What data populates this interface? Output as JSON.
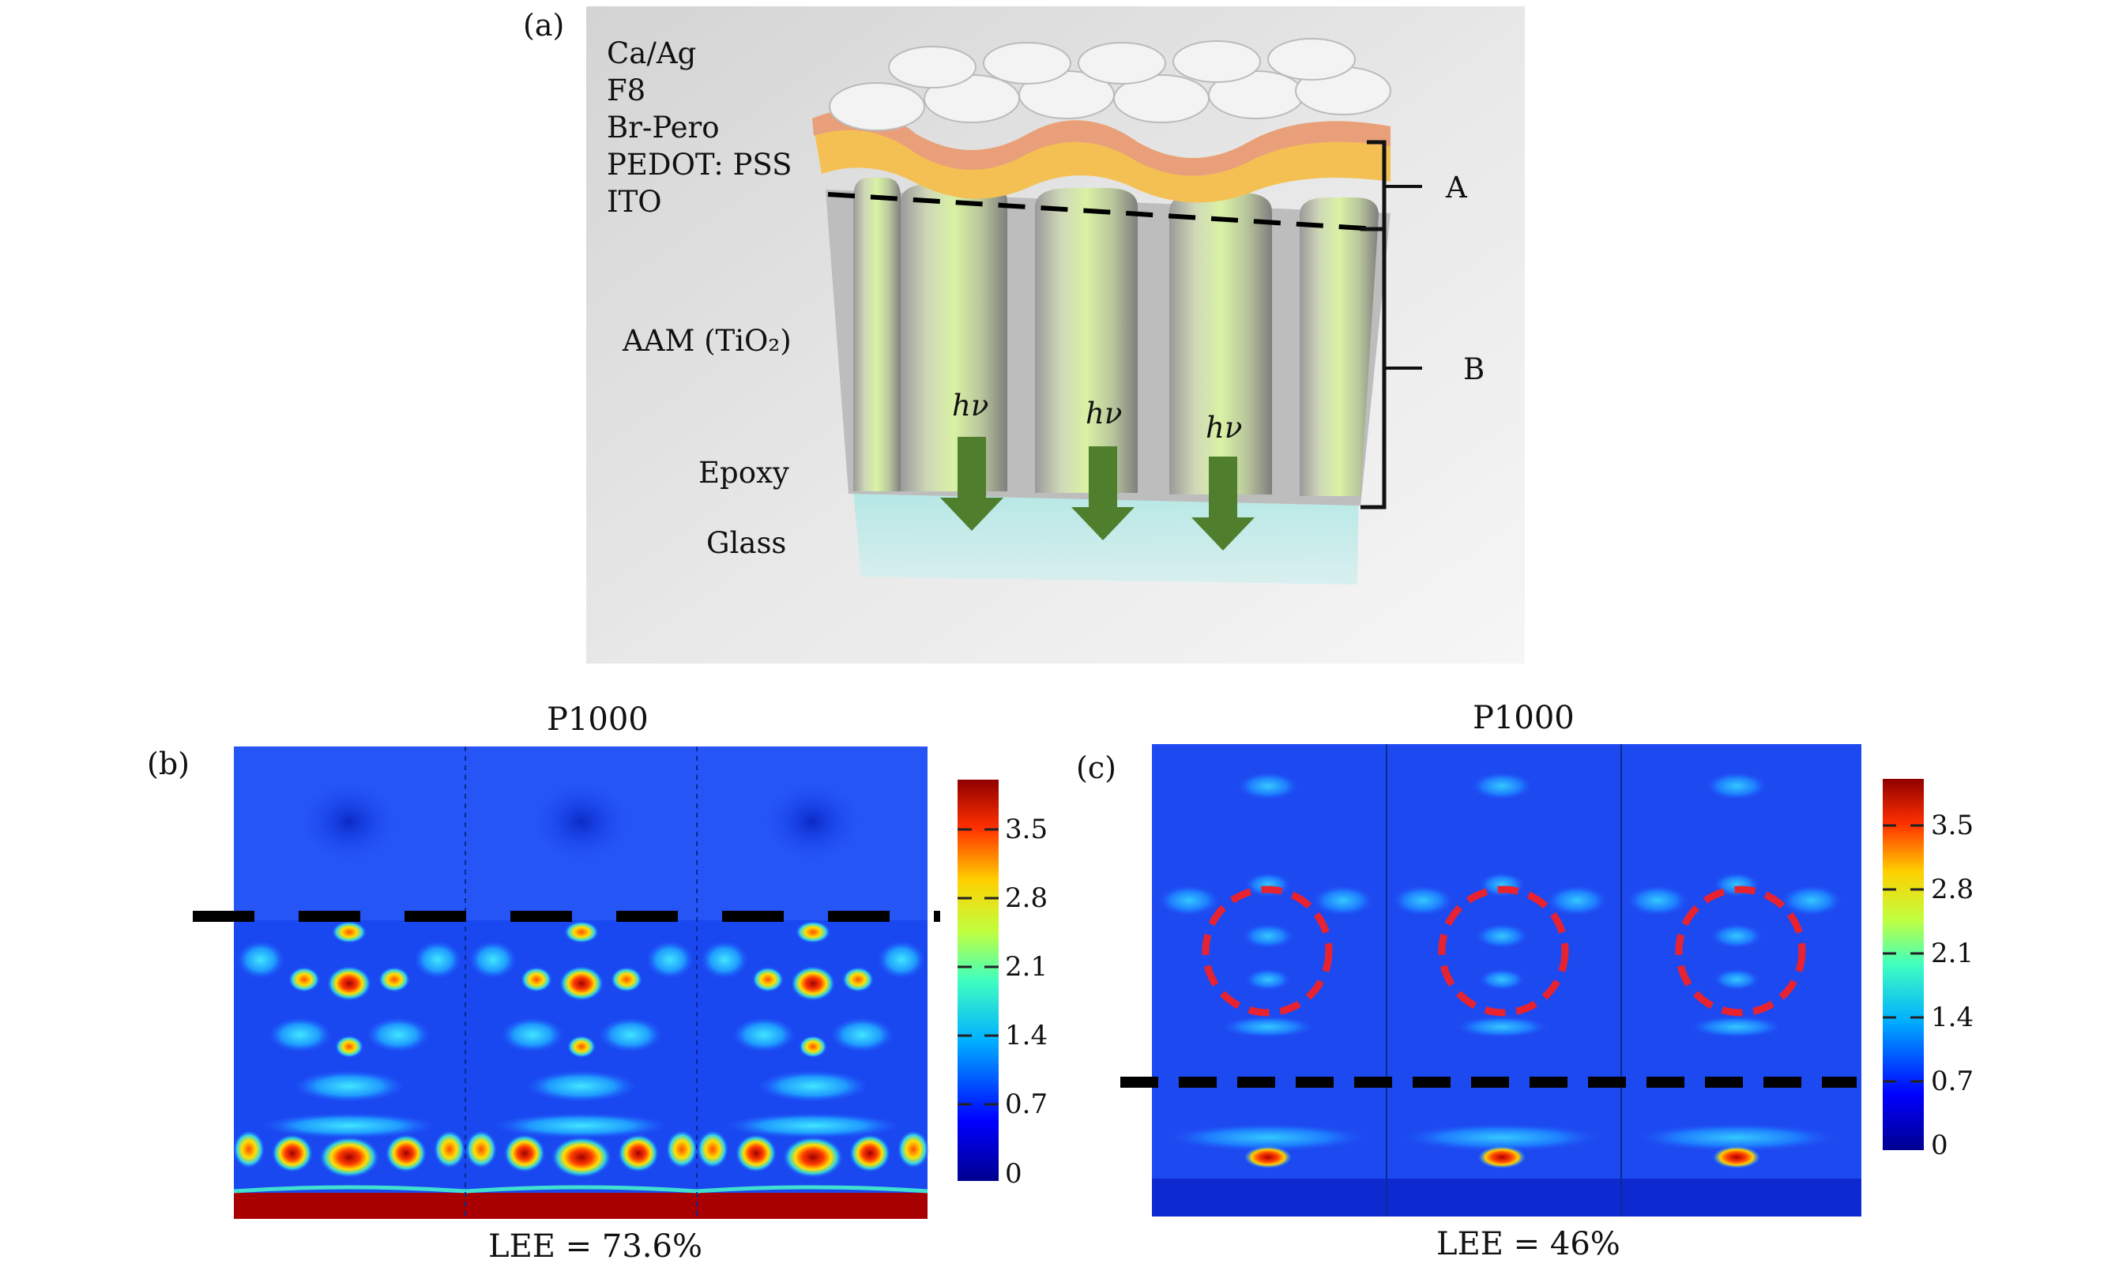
{
  "panel_a": {
    "label": "(a)",
    "layers": [
      "Ca/Ag",
      "F8",
      "Br-Pero",
      "PEDOT: PSS",
      "ITO"
    ],
    "aam_label": "AAM (TiO₂)",
    "epoxy_label": "Epoxy",
    "glass_label": "Glass",
    "photon_label": "hν",
    "bracket_a": "A",
    "bracket_b": "B"
  },
  "panel_b": {
    "label": "(b)",
    "title": "P1000",
    "lee": "LEE = 73.6%",
    "colorbar_ticks": [
      "3.5",
      "2.8",
      "2.1",
      "1.4",
      "0.7",
      "0"
    ]
  },
  "panel_c": {
    "label": "(c)",
    "title": "P1000",
    "lee": "LEE = 46%",
    "colorbar_ticks": [
      "3.5",
      "2.8",
      "2.1",
      "1.4",
      "0.7",
      "0"
    ]
  },
  "colors": {
    "field_low": "#0a2fd8",
    "field_high": "#b00000",
    "arrow": "#4f7f2c",
    "marker": "#e8232f"
  }
}
